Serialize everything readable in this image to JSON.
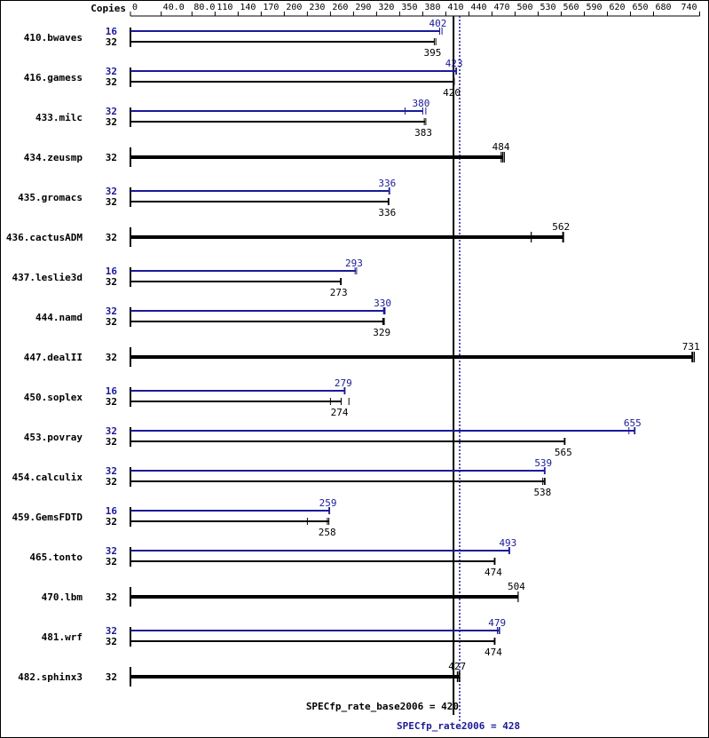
{
  "chart_data": {
    "type": "bar",
    "header_label": "Copies",
    "x_ticks": [
      "0",
      "40.0",
      "80.0",
      "110",
      "140",
      "170",
      "200",
      "230",
      "260",
      "290",
      "320",
      "350",
      "380",
      "410",
      "440",
      "470",
      "500",
      "530",
      "560",
      "590",
      "620",
      "650",
      "680",
      "740"
    ],
    "x_tick_values": [
      0,
      40,
      80,
      110,
      140,
      170,
      200,
      230,
      260,
      290,
      320,
      350,
      380,
      410,
      440,
      470,
      500,
      530,
      560,
      590,
      620,
      650,
      680,
      740
    ],
    "xlim": [
      0,
      740
    ],
    "series": [
      {
        "name": "SPECfp_rate2006",
        "color": "#1a1a99"
      },
      {
        "name": "SPECfp_rate_base2006",
        "color": "#000000"
      }
    ],
    "benchmarks": [
      {
        "name": "410.bwaves",
        "peak": {
          "copies": "16",
          "value": 402,
          "label": "402",
          "runs": [
            402,
            405
          ]
        },
        "base": {
          "copies": "32",
          "value": 395,
          "label": "395",
          "runs": [
            395,
            397
          ]
        }
      },
      {
        "name": "416.gamess",
        "peak": {
          "copies": "32",
          "value": 423,
          "label": "423",
          "runs": [
            423,
            424
          ]
        },
        "base": {
          "copies": "32",
          "value": 420,
          "label": "420",
          "runs": [
            420,
            421
          ]
        }
      },
      {
        "name": "433.milc",
        "peak": {
          "copies": "32",
          "value": 380,
          "label": "380",
          "runs": [
            357,
            380,
            384
          ]
        },
        "base": {
          "copies": "32",
          "value": 383,
          "label": "383",
          "runs": [
            382,
            384
          ]
        }
      },
      {
        "name": "434.zeusmp",
        "base": {
          "copies": "32",
          "value": 484,
          "label": "484",
          "runs": [
            482,
            484,
            486
          ]
        }
      },
      {
        "name": "435.gromacs",
        "peak": {
          "copies": "32",
          "value": 336,
          "label": "336",
          "runs": [
            336,
            337
          ]
        },
        "base": {
          "copies": "32",
          "value": 336,
          "label": "336",
          "runs": [
            335,
            336
          ]
        }
      },
      {
        "name": "436.cactusADM",
        "base": {
          "copies": "32",
          "value": 562,
          "label": "562",
          "runs": [
            521,
            562,
            563
          ]
        }
      },
      {
        "name": "437.leslie3d",
        "peak": {
          "copies": "16",
          "value": 293,
          "label": "293",
          "runs": [
            292,
            294
          ]
        },
        "base": {
          "copies": "32",
          "value": 273,
          "label": "273",
          "runs": [
            273,
            274
          ]
        }
      },
      {
        "name": "444.namd",
        "peak": {
          "copies": "32",
          "value": 330,
          "label": "330",
          "runs": [
            329,
            330,
            331
          ]
        },
        "base": {
          "copies": "32",
          "value": 329,
          "label": "329",
          "runs": [
            328,
            329,
            330
          ]
        }
      },
      {
        "name": "447.dealII",
        "base": {
          "copies": "32",
          "value": 731,
          "label": "731",
          "runs": [
            730,
            731,
            733
          ]
        }
      },
      {
        "name": "450.soplex",
        "peak": {
          "copies": "16",
          "value": 279,
          "label": "279",
          "runs": [
            278,
            279
          ]
        },
        "base": {
          "copies": "32",
          "value": 274,
          "label": "274",
          "runs": [
            260,
            274,
            284
          ]
        }
      },
      {
        "name": "453.povray",
        "peak": {
          "copies": "32",
          "value": 655,
          "label": "655",
          "runs": [
            648,
            655,
            656
          ]
        },
        "base": {
          "copies": "32",
          "value": 565,
          "label": "565",
          "runs": [
            564,
            565
          ]
        }
      },
      {
        "name": "454.calculix",
        "peak": {
          "copies": "32",
          "value": 539,
          "label": "539",
          "runs": [
            538,
            539
          ]
        },
        "base": {
          "copies": "32",
          "value": 538,
          "label": "538",
          "runs": [
            536,
            538,
            539
          ]
        }
      },
      {
        "name": "459.GemsFDTD",
        "peak": {
          "copies": "16",
          "value": 259,
          "label": "259",
          "runs": [
            258,
            259
          ]
        },
        "base": {
          "copies": "32",
          "value": 258,
          "label": "258",
          "runs": [
            230,
            256,
            258
          ]
        }
      },
      {
        "name": "465.tonto",
        "peak": {
          "copies": "32",
          "value": 493,
          "label": "493",
          "runs": [
            492,
            493
          ]
        },
        "base": {
          "copies": "32",
          "value": 474,
          "label": "474",
          "runs": [
            473,
            474
          ]
        }
      },
      {
        "name": "470.lbm",
        "base": {
          "copies": "32",
          "value": 504,
          "label": "504",
          "runs": [
            504
          ]
        }
      },
      {
        "name": "481.wrf",
        "peak": {
          "copies": "32",
          "value": 479,
          "label": "479",
          "runs": [
            477,
            479,
            480
          ]
        },
        "base": {
          "copies": "32",
          "value": 474,
          "label": "474",
          "runs": [
            473,
            474
          ]
        }
      },
      {
        "name": "482.sphinx3",
        "base": {
          "copies": "32",
          "value": 427,
          "label": "427",
          "runs": [
            425,
            427,
            428
          ]
        }
      }
    ],
    "reference_lines": [
      {
        "label": "SPECfp_rate_base2006 = 420",
        "value": 420,
        "style": "solid",
        "color": "#000000"
      },
      {
        "label": "SPECfp_rate2006 = 428",
        "value": 428,
        "style": "dotted",
        "color": "#1a1a99"
      }
    ]
  }
}
